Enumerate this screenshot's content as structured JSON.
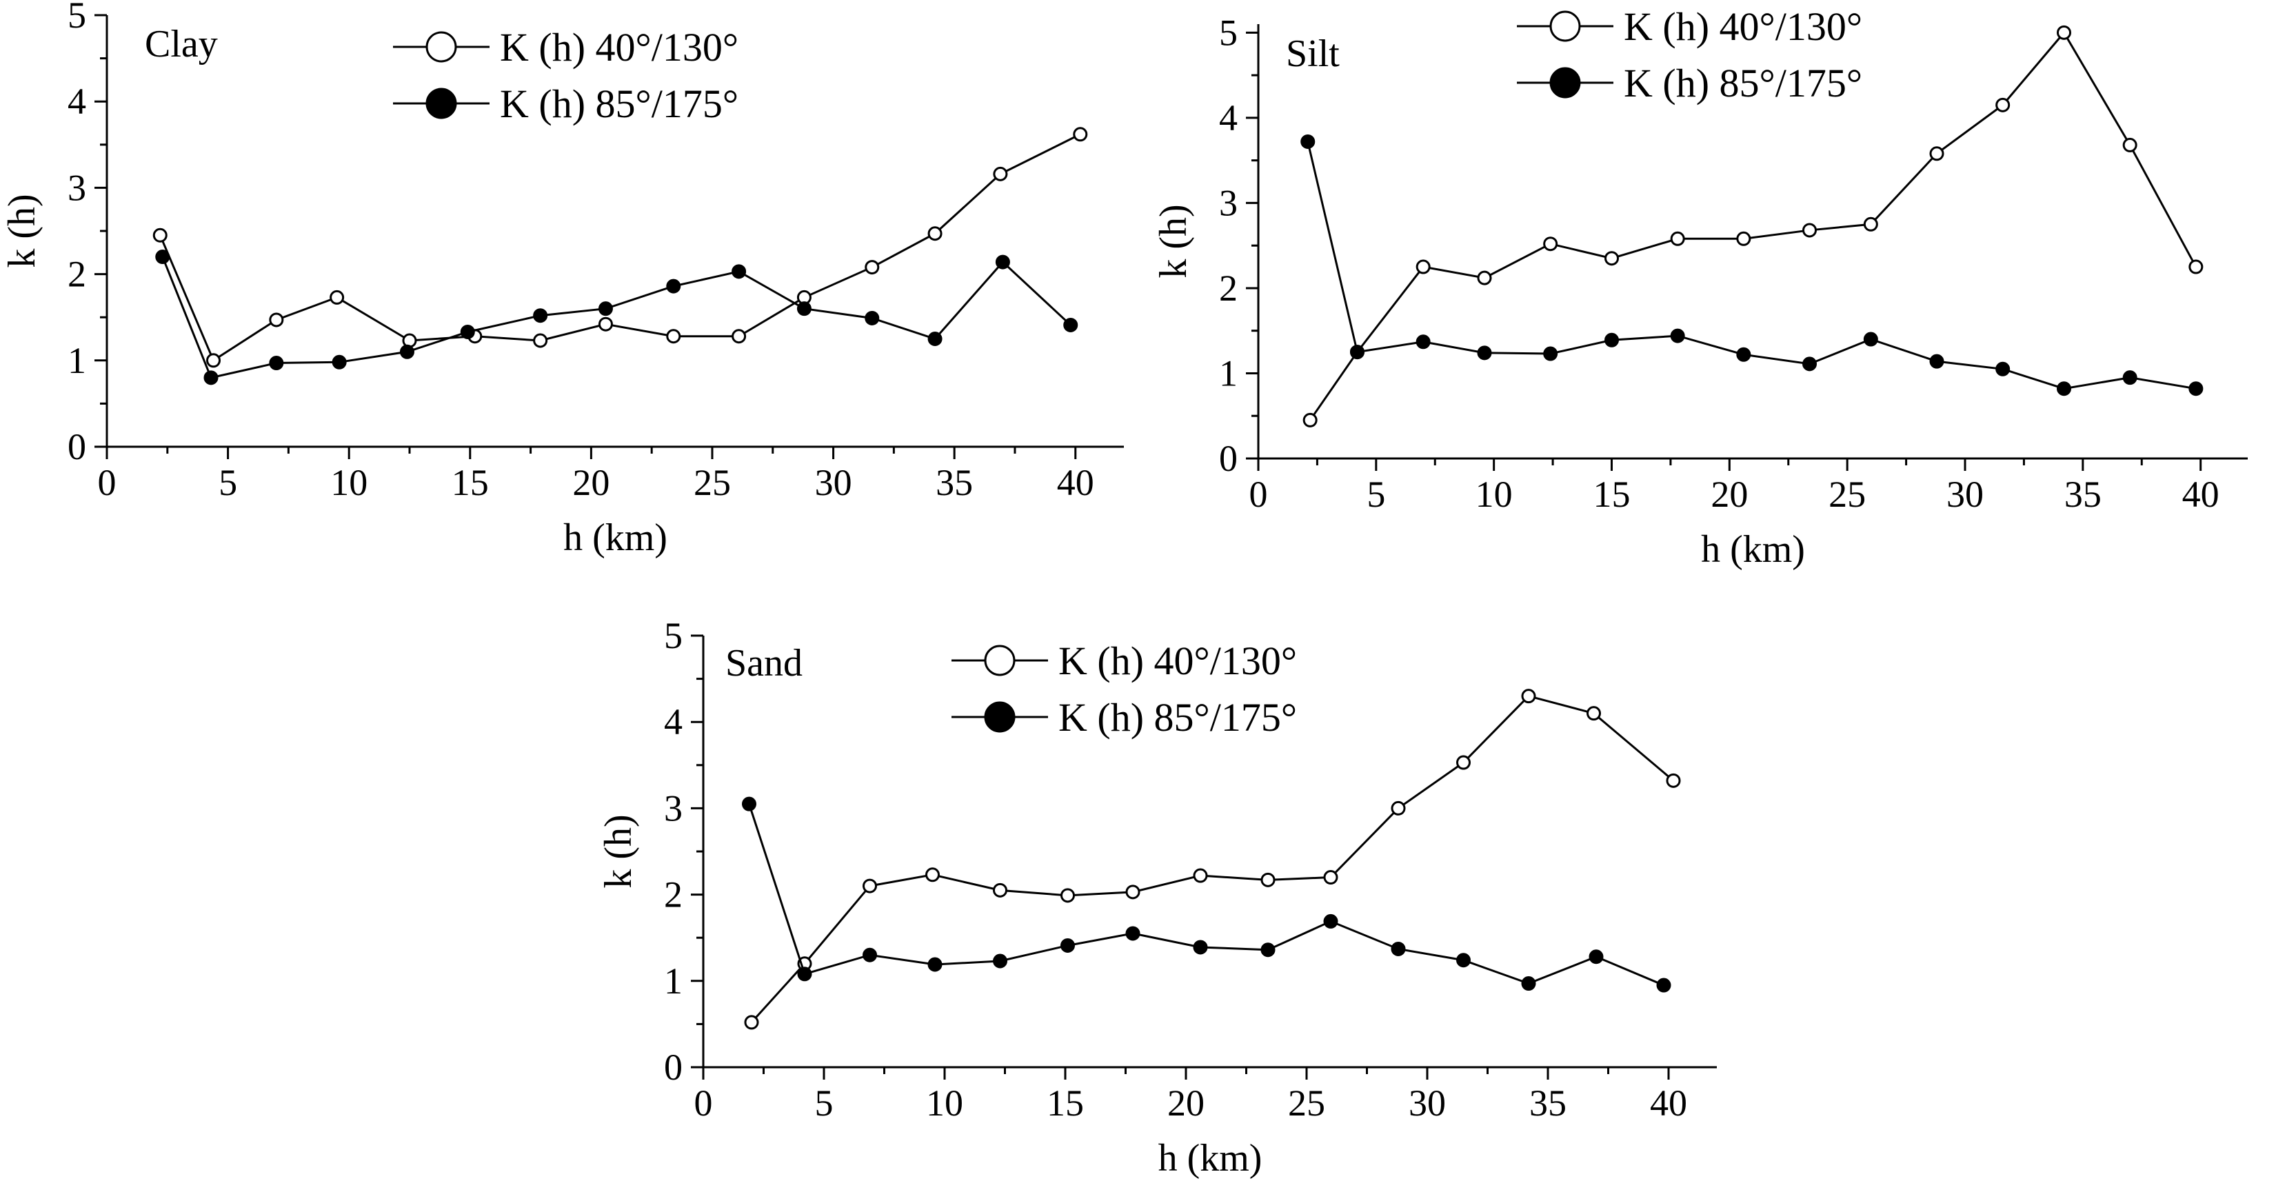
{
  "colors": {
    "ink": "#000000",
    "open_marker_fill": "#ffffff",
    "filled_marker_fill": "#000000"
  },
  "chart_data": [
    {
      "type": "line",
      "title": "Clay",
      "xlabel": "h (km)",
      "ylabel": "k (h)",
      "xlim": [
        0,
        42
      ],
      "ylim": [
        0,
        5
      ],
      "xticks": [
        "0",
        "5",
        "10",
        "15",
        "20",
        "25",
        "30",
        "35",
        "40"
      ],
      "yticks": [
        "0",
        "1",
        "2",
        "3",
        "4",
        "5"
      ],
      "legend_position": "top",
      "grid": false,
      "series": [
        {
          "name": "K (h) 40°/130°",
          "marker": "open-circle",
          "x": [
            2.2,
            4.4,
            7.0,
            9.5,
            12.5,
            15.2,
            17.9,
            20.6,
            23.4,
            26.1,
            28.8,
            31.6,
            34.2,
            36.9,
            40.2
          ],
          "y": [
            2.45,
            1.0,
            1.47,
            1.73,
            1.23,
            1.28,
            1.23,
            1.42,
            1.28,
            1.28,
            1.73,
            2.08,
            2.47,
            3.16,
            3.62
          ]
        },
        {
          "name": "K (h) 85°/175°",
          "marker": "filled-circle",
          "x": [
            2.3,
            4.3,
            7.0,
            9.6,
            12.4,
            14.9,
            17.9,
            20.6,
            23.4,
            26.1,
            28.8,
            31.6,
            34.2,
            37.0,
            39.8
          ],
          "y": [
            2.2,
            0.8,
            0.97,
            0.98,
            1.1,
            1.33,
            1.52,
            1.6,
            1.86,
            2.03,
            1.6,
            1.49,
            1.25,
            2.14,
            1.41
          ]
        }
      ]
    },
    {
      "type": "line",
      "title": "Silt",
      "xlabel": "h (km)",
      "ylabel": "k (h)",
      "xlim": [
        0,
        42
      ],
      "ylim": [
        0,
        5.1
      ],
      "xticks": [
        "0",
        "5",
        "10",
        "15",
        "20",
        "25",
        "30",
        "35",
        "40"
      ],
      "yticks": [
        "0",
        "1",
        "2",
        "3",
        "4",
        "5"
      ],
      "legend_position": "top",
      "grid": false,
      "series": [
        {
          "name": "K (h) 40°/130°",
          "marker": "open-circle",
          "x": [
            2.2,
            4.2,
            7.0,
            9.6,
            12.4,
            15.0,
            17.8,
            20.6,
            23.4,
            26.0,
            28.8,
            31.6,
            34.2,
            37.0,
            39.8
          ],
          "y": [
            0.45,
            1.25,
            2.25,
            2.12,
            2.52,
            2.35,
            2.58,
            2.58,
            2.68,
            2.75,
            3.58,
            4.15,
            5.0,
            3.68,
            2.25
          ]
        },
        {
          "name": "K (h) 85°/175°",
          "marker": "filled-circle",
          "x": [
            2.1,
            4.2,
            7.0,
            9.6,
            12.4,
            15.0,
            17.8,
            20.6,
            23.4,
            26.0,
            28.8,
            31.6,
            34.2,
            37.0,
            39.8
          ],
          "y": [
            3.72,
            1.25,
            1.37,
            1.24,
            1.23,
            1.39,
            1.44,
            1.22,
            1.11,
            1.4,
            1.14,
            1.05,
            0.82,
            0.95,
            0.82
          ]
        }
      ]
    },
    {
      "type": "line",
      "title": "Sand",
      "xlabel": "h (km)",
      "ylabel": "k (h)",
      "xlim": [
        0,
        42
      ],
      "ylim": [
        0,
        5
      ],
      "xticks": [
        "0",
        "5",
        "10",
        "15",
        "20",
        "25",
        "30",
        "35",
        "40"
      ],
      "yticks": [
        "0",
        "1",
        "2",
        "3",
        "4",
        "5"
      ],
      "legend_position": "top",
      "grid": false,
      "series": [
        {
          "name": "K (h) 40°/130°",
          "marker": "open-circle",
          "x": [
            2.0,
            4.2,
            6.9,
            9.5,
            12.3,
            15.1,
            17.8,
            20.6,
            23.4,
            26.0,
            28.8,
            31.5,
            34.2,
            36.9,
            40.2
          ],
          "y": [
            0.52,
            1.2,
            2.1,
            2.23,
            2.05,
            1.99,
            2.03,
            2.22,
            2.17,
            2.2,
            3.0,
            3.53,
            4.3,
            4.1,
            3.32
          ]
        },
        {
          "name": "K (h) 85°/175°",
          "marker": "filled-circle",
          "x": [
            1.9,
            4.2,
            6.9,
            9.6,
            12.3,
            15.1,
            17.8,
            20.6,
            23.4,
            26.0,
            28.8,
            31.5,
            34.2,
            37.0,
            39.8
          ],
          "y": [
            3.05,
            1.08,
            1.3,
            1.19,
            1.23,
            1.41,
            1.55,
            1.39,
            1.36,
            1.69,
            1.37,
            1.24,
            0.97,
            1.28,
            0.95
          ]
        }
      ]
    }
  ]
}
